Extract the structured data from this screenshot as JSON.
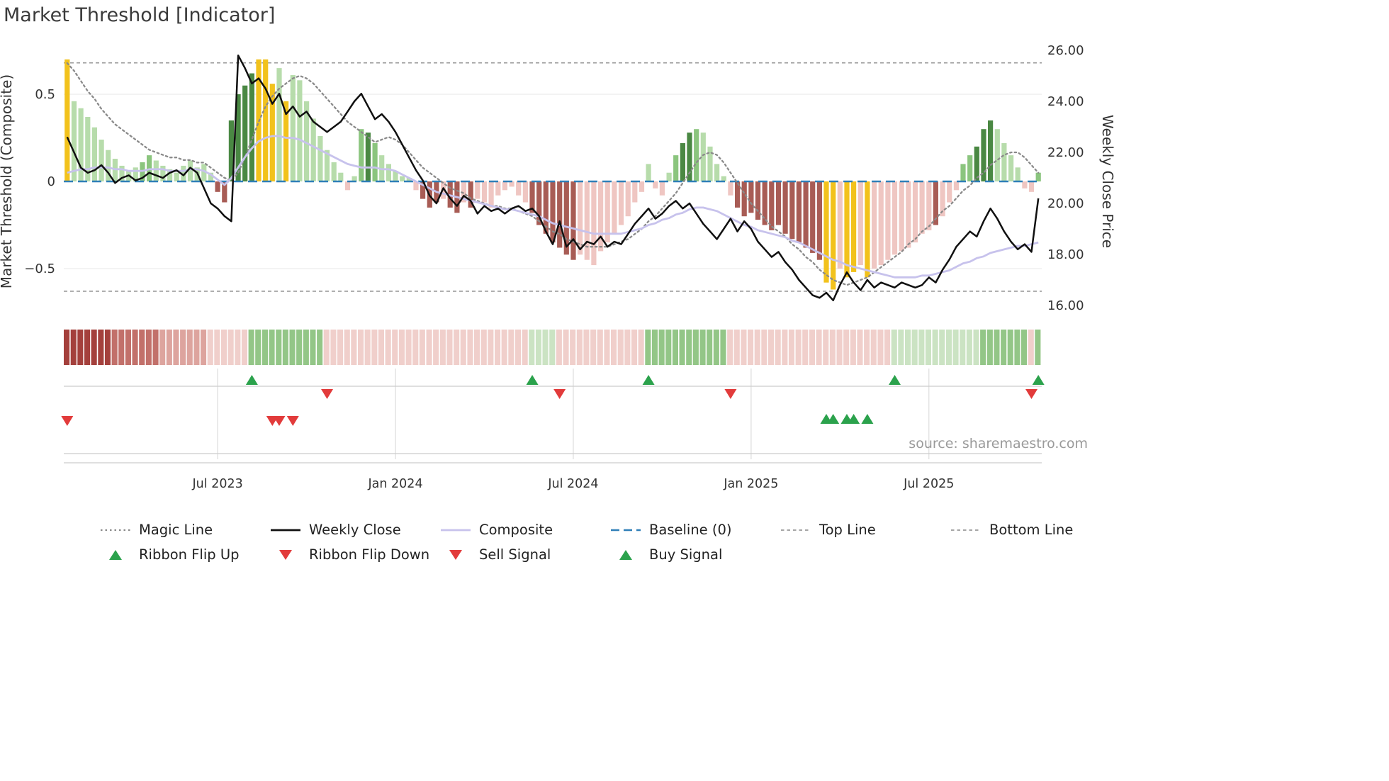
{
  "title": "Market Threshold [Indicator]",
  "source": "source: sharemaestro.com",
  "legend": {
    "items": [
      {
        "label": "Magic Line",
        "type": "line-dotted-gray",
        "row": 1
      },
      {
        "label": "Weekly Close",
        "type": "line-solid-black",
        "row": 1
      },
      {
        "label": "Composite",
        "type": "line-solid-lavender",
        "row": 1
      },
      {
        "label": "Baseline (0)",
        "type": "line-dashed-blue",
        "row": 1
      },
      {
        "label": "Top Line",
        "type": "line-dashed-gray",
        "row": 1
      },
      {
        "label": "Bottom Line",
        "type": "line-dashed-gray",
        "row": 1
      },
      {
        "label": "Ribbon Flip Up",
        "type": "triangle-up-green",
        "row": 2
      },
      {
        "label": "Ribbon Flip Down",
        "type": "triangle-down-red",
        "row": 2
      },
      {
        "label": "Sell Signal",
        "type": "triangle-down-red",
        "row": 2
      },
      {
        "label": "Buy Signal",
        "type": "triangle-up-green",
        "row": 2
      }
    ]
  },
  "chart_data": {
    "type": "bar",
    "subtype": "weekly composite indicator bars with price overlay lines, signal ribbon and signal markers",
    "title": "Market Threshold [Indicator]",
    "n_weeks": 143,
    "x_tick_labels": [
      "Jul 2023",
      "Jan 2024",
      "Jul 2024",
      "Jan 2025",
      "Jul 2025"
    ],
    "x_tick_indices": [
      22,
      48,
      74,
      100,
      126
    ],
    "left_axis": {
      "label": "Market Threshold (Composite)",
      "ticks": [
        "0.5",
        "0",
        "−0.5"
      ],
      "tick_values": [
        0.5,
        0,
        -0.5
      ],
      "range": [
        -0.78,
        0.82
      ]
    },
    "right_axis": {
      "label": "Weekly Close Price",
      "ticks": [
        "26.00",
        "24.00",
        "22.00",
        "20.00",
        "18.00",
        "16.00"
      ],
      "tick_values": [
        26,
        24,
        22,
        20,
        18,
        16
      ],
      "range": [
        15.4,
        26.6
      ]
    },
    "reference_lines": {
      "baseline": 0,
      "top_line": 0.68,
      "bottom_line": -0.63
    },
    "bars": {
      "name": "Composite (bars)",
      "values": [
        0.7,
        0.46,
        0.42,
        0.37,
        0.31,
        0.24,
        0.18,
        0.13,
        0.09,
        0.06,
        0.08,
        0.11,
        0.15,
        0.12,
        0.09,
        0.07,
        0.05,
        0.09,
        0.12,
        0.08,
        0.1,
        0.05,
        -0.06,
        -0.12,
        0.35,
        0.5,
        0.55,
        0.62,
        0.7,
        0.7,
        0.56,
        0.65,
        0.46,
        0.61,
        0.58,
        0.46,
        0.36,
        0.26,
        0.18,
        0.11,
        0.05,
        -0.05,
        0.03,
        0.3,
        0.28,
        0.22,
        0.15,
        0.1,
        0.06,
        0.03,
        0.02,
        -0.05,
        -0.1,
        -0.15,
        -0.12,
        -0.1,
        -0.15,
        -0.18,
        -0.12,
        -0.15,
        -0.1,
        -0.12,
        -0.15,
        -0.08,
        -0.05,
        -0.03,
        -0.08,
        -0.12,
        -0.18,
        -0.25,
        -0.3,
        -0.35,
        -0.38,
        -0.42,
        -0.45,
        -0.42,
        -0.45,
        -0.48,
        -0.4,
        -0.35,
        -0.3,
        -0.25,
        -0.2,
        -0.12,
        -0.06,
        0.1,
        -0.04,
        -0.08,
        0.05,
        0.15,
        0.22,
        0.28,
        0.3,
        0.28,
        0.2,
        0.1,
        0.03,
        -0.08,
        -0.15,
        -0.2,
        -0.18,
        -0.22,
        -0.25,
        -0.28,
        -0.25,
        -0.3,
        -0.33,
        -0.35,
        -0.38,
        -0.41,
        -0.45,
        -0.58,
        -0.62,
        -0.5,
        -0.55,
        -0.52,
        -0.48,
        -0.55,
        -0.5,
        -0.48,
        -0.45,
        -0.42,
        -0.4,
        -0.38,
        -0.35,
        -0.3,
        -0.28,
        -0.25,
        -0.2,
        -0.12,
        -0.05,
        0.1,
        0.15,
        0.2,
        0.3,
        0.35,
        0.3,
        0.22,
        0.15,
        0.08,
        -0.04,
        -0.06,
        0.05
      ],
      "color_classes": [
        "y",
        "g1",
        "g1",
        "g1",
        "g1",
        "g1",
        "g1",
        "g1",
        "g1",
        "g1",
        "g1",
        "g2",
        "g2",
        "g1",
        "g1",
        "g1",
        "g1",
        "g1",
        "g1",
        "g1",
        "g1",
        "g1",
        "p2",
        "p2",
        "g3",
        "g3",
        "g3",
        "g3",
        "y",
        "y",
        "y",
        "g1",
        "y",
        "g1",
        "g1",
        "g1",
        "g1",
        "g1",
        "g1",
        "g1",
        "g1",
        "p1",
        "g1",
        "g2",
        "g3",
        "g2",
        "g1",
        "g1",
        "g1",
        "g1",
        "g1",
        "p1",
        "p2",
        "p2",
        "p2",
        "p1",
        "p2",
        "p2",
        "p1",
        "p2",
        "p1",
        "p1",
        "p1",
        "p1",
        "p1",
        "p1",
        "p1",
        "p1",
        "p2",
        "p2",
        "p2",
        "p2",
        "p2",
        "p2",
        "p2",
        "p1",
        "p1",
        "p1",
        "p1",
        "p1",
        "p1",
        "p1",
        "p1",
        "p1",
        "p1",
        "g1",
        "p1",
        "p1",
        "g1",
        "g2",
        "g3",
        "g3",
        "g2",
        "g1",
        "g1",
        "g1",
        "g1",
        "p1",
        "p2",
        "p2",
        "p2",
        "p2",
        "p2",
        "p2",
        "p2",
        "p2",
        "p2",
        "p2",
        "p2",
        "p2",
        "p2",
        "y",
        "y",
        "p1",
        "y",
        "y",
        "p1",
        "y",
        "p1",
        "p1",
        "p1",
        "p1",
        "p1",
        "p1",
        "p1",
        "p1",
        "p1",
        "p2",
        "p1",
        "p1",
        "p1",
        "g2",
        "g2",
        "g3",
        "g3",
        "g3",
        "g1",
        "g1",
        "g1",
        "g1",
        "p1",
        "p1",
        "g2"
      ]
    },
    "series": [
      {
        "name": "Weekly Close",
        "axis": "right",
        "style": "solid-black",
        "values": [
          22.6,
          22.0,
          21.4,
          21.2,
          21.3,
          21.5,
          21.2,
          20.8,
          21.0,
          21.1,
          20.9,
          21.0,
          21.2,
          21.1,
          21.0,
          21.2,
          21.3,
          21.1,
          21.4,
          21.2,
          20.6,
          20.0,
          19.8,
          19.5,
          19.3,
          25.8,
          25.3,
          24.7,
          24.9,
          24.5,
          23.9,
          24.3,
          23.5,
          23.8,
          23.4,
          23.6,
          23.2,
          23.0,
          22.8,
          23.0,
          23.2,
          23.6,
          24.0,
          24.3,
          23.8,
          23.3,
          23.5,
          23.2,
          22.8,
          22.3,
          21.8,
          21.3,
          20.9,
          20.3,
          20.0,
          20.6,
          20.2,
          19.9,
          20.3,
          20.1,
          19.6,
          19.9,
          19.7,
          19.8,
          19.6,
          19.8,
          19.9,
          19.7,
          19.8,
          19.5,
          18.9,
          18.4,
          19.3,
          18.3,
          18.6,
          18.2,
          18.5,
          18.4,
          18.7,
          18.3,
          18.5,
          18.4,
          18.8,
          19.2,
          19.5,
          19.8,
          19.4,
          19.6,
          19.9,
          20.1,
          19.8,
          20.0,
          19.6,
          19.2,
          18.9,
          18.6,
          19.0,
          19.4,
          18.9,
          19.3,
          19.0,
          18.5,
          18.2,
          17.9,
          18.1,
          17.7,
          17.4,
          17.0,
          16.7,
          16.4,
          16.3,
          16.5,
          16.2,
          16.8,
          17.3,
          16.9,
          16.6,
          17.0,
          16.7,
          16.9,
          16.8,
          16.7,
          16.9,
          16.8,
          16.7,
          16.8,
          17.1,
          16.9,
          17.4,
          17.8,
          18.3,
          18.6,
          18.9,
          18.7,
          19.3,
          19.8,
          19.4,
          18.9,
          18.5,
          18.2,
          18.4,
          18.1,
          20.2
        ]
      },
      {
        "name": "Magic Line",
        "axis": "right",
        "style": "dotted-gray",
        "values": [
          25.5,
          25.2,
          24.8,
          24.4,
          24.1,
          23.7,
          23.4,
          23.1,
          22.9,
          22.7,
          22.5,
          22.3,
          22.1,
          22.0,
          21.9,
          21.8,
          21.8,
          21.7,
          21.7,
          21.6,
          21.6,
          21.4,
          21.2,
          21.0,
          20.9,
          21.2,
          21.8,
          22.5,
          23.2,
          23.8,
          24.2,
          24.5,
          24.7,
          24.9,
          25.0,
          24.9,
          24.7,
          24.4,
          24.1,
          23.8,
          23.5,
          23.2,
          23.0,
          22.8,
          22.6,
          22.4,
          22.5,
          22.6,
          22.5,
          22.3,
          22.0,
          21.7,
          21.4,
          21.2,
          21.0,
          20.8,
          20.6,
          20.5,
          20.4,
          20.2,
          20.1,
          20.0,
          19.9,
          19.9,
          19.8,
          19.8,
          19.7,
          19.6,
          19.5,
          19.3,
          19.1,
          18.9,
          18.8,
          18.6,
          18.5,
          18.4,
          18.3,
          18.3,
          18.3,
          18.3,
          18.4,
          18.5,
          18.6,
          18.8,
          19.0,
          19.3,
          19.5,
          19.8,
          20.1,
          20.4,
          20.8,
          21.2,
          21.6,
          21.9,
          22.0,
          21.9,
          21.6,
          21.2,
          20.8,
          20.4,
          20.0,
          19.7,
          19.4,
          19.1,
          18.9,
          18.7,
          18.4,
          18.2,
          17.9,
          17.7,
          17.4,
          17.2,
          17.0,
          16.9,
          16.8,
          16.9,
          17.0,
          17.1,
          17.3,
          17.5,
          17.7,
          17.9,
          18.1,
          18.4,
          18.6,
          18.9,
          19.1,
          19.4,
          19.7,
          19.9,
          20.2,
          20.5,
          20.7,
          21.0,
          21.2,
          21.5,
          21.7,
          21.9,
          22.0,
          22.0,
          21.8,
          21.5,
          21.2
        ]
      },
      {
        "name": "Composite",
        "axis": "left",
        "style": "solid-lavender",
        "values": [
          0.05,
          0.06,
          0.07,
          0.07,
          0.08,
          0.08,
          0.08,
          0.07,
          0.07,
          0.06,
          0.06,
          0.06,
          0.07,
          0.07,
          0.07,
          0.06,
          0.06,
          0.06,
          0.07,
          0.07,
          0.06,
          0.04,
          0.01,
          -0.02,
          0.02,
          0.08,
          0.14,
          0.19,
          0.23,
          0.25,
          0.26,
          0.26,
          0.25,
          0.25,
          0.24,
          0.22,
          0.2,
          0.18,
          0.16,
          0.14,
          0.12,
          0.1,
          0.09,
          0.08,
          0.08,
          0.08,
          0.07,
          0.07,
          0.06,
          0.04,
          0.02,
          0.0,
          -0.02,
          -0.04,
          -0.06,
          -0.07,
          -0.08,
          -0.09,
          -0.1,
          -0.11,
          -0.12,
          -0.13,
          -0.14,
          -0.15,
          -0.16,
          -0.16,
          -0.17,
          -0.18,
          -0.19,
          -0.2,
          -0.22,
          -0.24,
          -0.25,
          -0.26,
          -0.27,
          -0.28,
          -0.29,
          -0.3,
          -0.3,
          -0.3,
          -0.3,
          -0.3,
          -0.29,
          -0.28,
          -0.27,
          -0.25,
          -0.24,
          -0.22,
          -0.21,
          -0.19,
          -0.18,
          -0.16,
          -0.15,
          -0.15,
          -0.16,
          -0.17,
          -0.19,
          -0.21,
          -0.23,
          -0.25,
          -0.26,
          -0.28,
          -0.29,
          -0.3,
          -0.31,
          -0.32,
          -0.34,
          -0.35,
          -0.37,
          -0.39,
          -0.41,
          -0.43,
          -0.45,
          -0.46,
          -0.48,
          -0.49,
          -0.5,
          -0.51,
          -0.52,
          -0.53,
          -0.54,
          -0.55,
          -0.55,
          -0.55,
          -0.55,
          -0.54,
          -0.54,
          -0.53,
          -0.52,
          -0.51,
          -0.49,
          -0.47,
          -0.46,
          -0.44,
          -0.43,
          -0.41,
          -0.4,
          -0.39,
          -0.38,
          -0.37,
          -0.37,
          -0.36,
          -0.35
        ]
      }
    ],
    "ribbon": {
      "rle": [
        [
          "rd3",
          7
        ],
        [
          "rd2",
          7
        ],
        [
          "rd1",
          7
        ],
        [
          "rp",
          6
        ],
        [
          "gm",
          11
        ],
        [
          "rp",
          30
        ],
        [
          "gl",
          4
        ],
        [
          "rp",
          13
        ],
        [
          "gm",
          12
        ],
        [
          "rp",
          24
        ],
        [
          "gl",
          13
        ],
        [
          "gm",
          7
        ],
        [
          "rp",
          1
        ],
        [
          "gm",
          1
        ]
      ]
    },
    "signals": {
      "ribbon_flip_up": [
        27,
        68,
        85,
        121,
        142
      ],
      "ribbon_flip_down": [
        38,
        72,
        97,
        141
      ],
      "sell": [
        0,
        30,
        31,
        33
      ],
      "buy": [
        111,
        112,
        114,
        115,
        117
      ]
    },
    "palette": {
      "bars": {
        "y": "#f2c21c",
        "g1": "#b7dcab",
        "g2": "#8bc57e",
        "g3": "#4a8843",
        "p1": "#efc6c2",
        "p2": "#a85c55"
      },
      "ribbon": {
        "rd3": "#a4403c",
        "rd2": "#c2706a",
        "rd1": "#dda49e",
        "rp": "#f0cfcb",
        "gl": "#cbe3c3",
        "gm": "#93c687"
      },
      "lines": {
        "weekly_close": "#101010",
        "magic": "#8a8a8a",
        "composite": "#c7c2ec",
        "baseline": "#2f7fb8",
        "ref": "#999999"
      },
      "signals": {
        "up": "#2ba24c",
        "down": "#e23b3b"
      }
    },
    "legend_position": "bottom",
    "grid": "light horizontal lines in plot, light vertical month gridlines in signal panel"
  }
}
